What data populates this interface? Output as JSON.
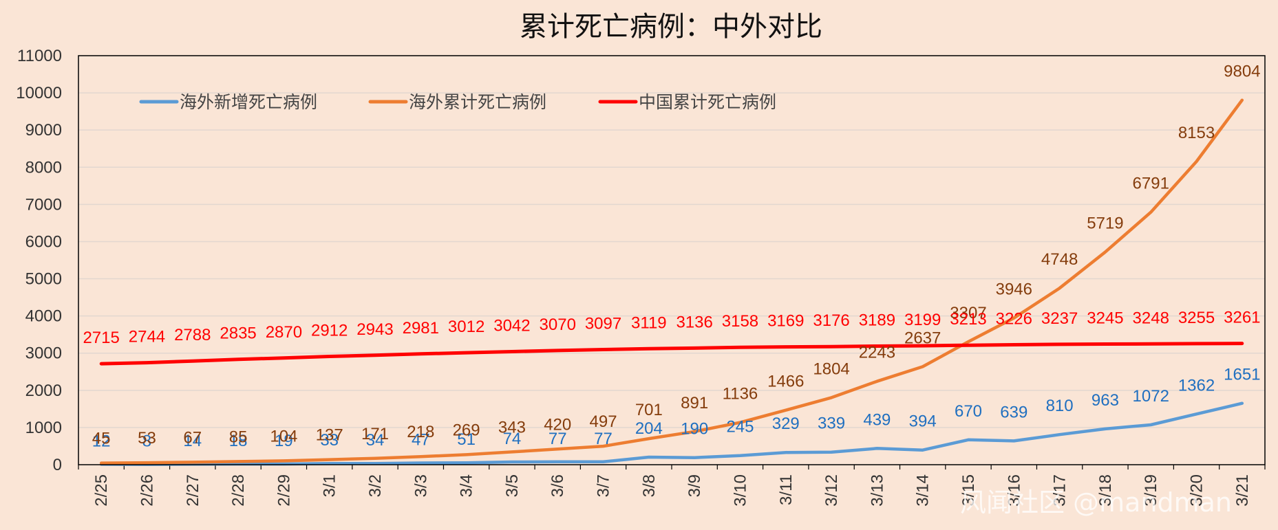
{
  "chart_data": {
    "type": "line",
    "title": "累计死亡病例：中外对比",
    "xlabel": "",
    "ylabel": "",
    "ylim": [
      0,
      11000
    ],
    "yticks": [
      0,
      1000,
      2000,
      3000,
      4000,
      5000,
      6000,
      7000,
      8000,
      9000,
      10000,
      11000
    ],
    "grid": true,
    "legend_position": "top",
    "categories": [
      "2/25",
      "2/26",
      "2/27",
      "2/28",
      "2/29",
      "3/1",
      "3/2",
      "3/3",
      "3/4",
      "3/5",
      "3/6",
      "3/7",
      "3/8",
      "3/9",
      "3/10",
      "3/11",
      "3/12",
      "3/13",
      "3/14",
      "3/15",
      "3/16",
      "3/17",
      "3/18",
      "3/19",
      "3/20",
      "3/21"
    ],
    "series": [
      {
        "name": "海外新增死亡病例",
        "color": "#5b9bd5",
        "label_color": "#1f6fc0",
        "values": [
          12,
          8,
          14,
          18,
          19,
          33,
          34,
          47,
          51,
          74,
          77,
          77,
          204,
          190,
          245,
          329,
          339,
          439,
          394,
          670,
          639,
          810,
          963,
          1072,
          1362,
          1651
        ]
      },
      {
        "name": "海外累计死亡病例",
        "color": "#ed7d31",
        "label_color": "#843c0c",
        "values": [
          45,
          53,
          67,
          85,
          104,
          137,
          171,
          218,
          269,
          343,
          420,
          497,
          701,
          891,
          1136,
          1466,
          1804,
          2243,
          2637,
          3307,
          3946,
          4748,
          5719,
          6791,
          8153,
          9804
        ]
      },
      {
        "name": "中国累计死亡病例",
        "color": "#ff0000",
        "label_color": "#ff0000",
        "values": [
          2715,
          2744,
          2788,
          2835,
          2870,
          2912,
          2943,
          2981,
          3012,
          3042,
          3070,
          3097,
          3119,
          3136,
          3158,
          3169,
          3176,
          3189,
          3199,
          3213,
          3226,
          3237,
          3245,
          3248,
          3255,
          3261
        ]
      }
    ]
  },
  "watermark": "风闻社区 @mandman"
}
